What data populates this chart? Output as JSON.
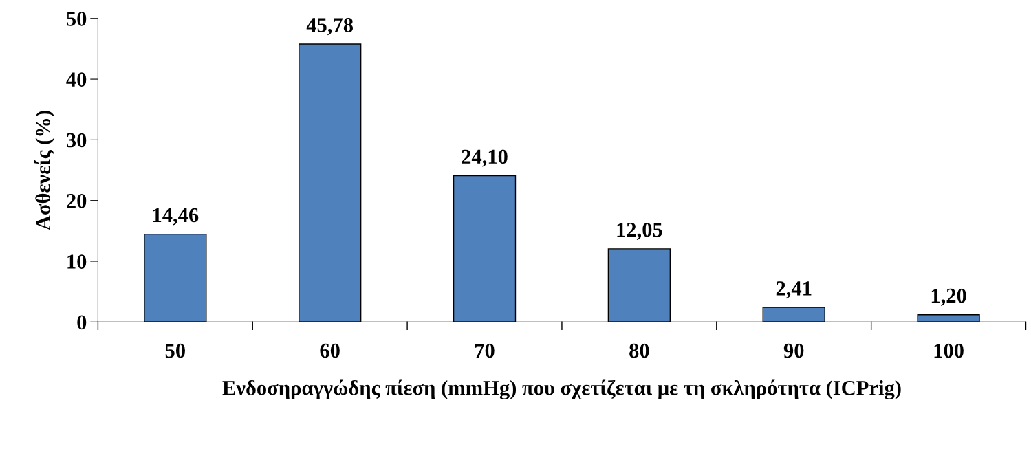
{
  "chart_data": {
    "type": "bar",
    "xlabel": "Ενδοσηραγγώδης πίεση (mmHg) που σχετίζεται με τη σκληρότητα (ICPrig)",
    "ylabel": "Ασθενείς (%)",
    "categories": [
      "50",
      "60",
      "70",
      "80",
      "90",
      "100"
    ],
    "values": [
      14.46,
      45.78,
      24.1,
      12.05,
      2.41,
      1.2
    ],
    "value_labels": [
      "14,46",
      "45,78",
      "24,10",
      "12,05",
      "2,41",
      "1,20"
    ],
    "color": "#4f81bd",
    "ylim": [
      0,
      50
    ],
    "yticks": [
      0,
      10,
      20,
      30,
      40,
      50
    ],
    "grid": false,
    "legend": false
  }
}
